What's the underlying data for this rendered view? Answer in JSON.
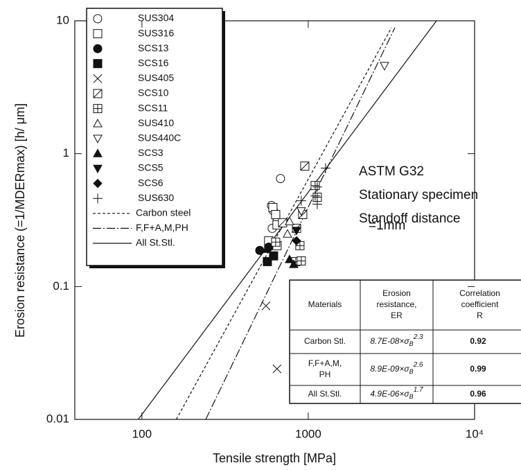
{
  "chart_data": {
    "type": "scatter",
    "xlabel": "Tensile strength  [MPa]",
    "ylabel": "Erosion resistance (=1/MDERmax) [h/ μm]",
    "xscale": "log",
    "yscale": "log",
    "xlim": [
      39.5,
      10000
    ],
    "ylim": [
      0.01,
      10
    ],
    "xticks": [
      100,
      1000,
      {
        "value": 10000,
        "label": "10⁴"
      }
    ],
    "yticks": [
      0.01,
      0.1,
      1,
      10
    ],
    "legend": "top-left",
    "series": [
      {
        "name": "SUS304",
        "marker": "circle-open",
        "x": [
          601,
          619,
          637,
          649,
          681,
          607
        ],
        "values": [
          0.407,
          0.37,
          0.34,
          0.309,
          0.649,
          0.274
        ]
      },
      {
        "name": "SUS316",
        "marker": "square-open",
        "x": [
          613,
          637,
          649,
          578,
          649
        ],
        "values": [
          0.393,
          0.348,
          0.291,
          0.221,
          0.203
        ]
      },
      {
        "name": "SCS13",
        "marker": "circle-filled",
        "x": [
          511,
          578
        ],
        "values": [
          0.187,
          0.198
        ]
      },
      {
        "name": "SCS16",
        "marker": "square-filled",
        "x": [
          568,
          619
        ],
        "values": [
          0.154,
          0.17
        ]
      },
      {
        "name": "SUS405",
        "marker": "x",
        "x": [
          557,
          649
        ],
        "values": [
          0.0715,
          0.024
        ]
      },
      {
        "name": "SCS10",
        "marker": "square-diag",
        "x": [
          953,
          926,
          701,
          850
        ],
        "values": [
          0.806,
          0.348,
          0.302,
          0.274
        ]
      },
      {
        "name": "SCS11",
        "marker": "square-plus",
        "x": [
          1101,
          1133,
          891,
          841,
          637,
          908
        ],
        "values": [
          0.576,
          0.47,
          0.203,
          0.154,
          0.216,
          0.156
        ]
      },
      {
        "name": "SUS410",
        "marker": "triangle-up-open",
        "x": [
          772,
          750
        ],
        "values": [
          0.309,
          0.249
        ]
      },
      {
        "name": "SUS440C",
        "marker": "triangle-down-open",
        "x": [
          2872,
          908
        ],
        "values": [
          4.59,
          0.37
        ]
      },
      {
        "name": "SCS3",
        "marker": "triangle-up-filled",
        "x": [
          562,
          772,
          818
        ],
        "values": [
          0.191,
          0.16,
          0.147
        ]
      },
      {
        "name": "SCS5",
        "marker": "triangle-down-filled",
        "x": [
          850
        ],
        "values": [
          0.264
        ]
      },
      {
        "name": "SCS6",
        "marker": "diamond-filled",
        "x": [
          850
        ],
        "values": [
          0.221
        ]
      },
      {
        "name": "SUS630",
        "marker": "plus",
        "x": [
          1271,
          1133,
          1101,
          1133,
          908
        ],
        "values": [
          0.778,
          0.562,
          0.481,
          0.417,
          0.442
        ]
      },
      {
        "name": "Carbon steel",
        "line": "dashed",
        "x": [
          161,
          3162
        ],
        "values": [
          0.01,
          8.87
        ]
      },
      {
        "name": "F,F+A,M,PH",
        "line": "dashdot",
        "x": [
          242,
          3319
        ],
        "values": [
          0.01,
          8.9
        ]
      },
      {
        "name": "All St.Stl.",
        "line": "solid",
        "x": [
          95,
          5902
        ],
        "values": [
          0.01,
          10
        ]
      }
    ],
    "annotations": [
      [
        "ASTM G32"
      ],
      [
        "Stationary specimen"
      ],
      [
        "Standoff distance",
        "=1mm"
      ]
    ],
    "table": {
      "header": [
        [
          "Materials"
        ],
        [
          "Erosion",
          "resistance,",
          "ER"
        ],
        [
          "Correlation",
          "coefficient",
          "R"
        ]
      ],
      "rows": [
        [
          [
            "Carbon Stl."
          ],
          {
            "base": "8.7E-08×σ",
            "sub": "B",
            "sup": "2.3"
          },
          "0.92"
        ],
        [
          [
            "F,F+A,M,",
            "PH"
          ],
          {
            "base": "8.9E-09×σ",
            "sub": "B",
            "sup": "2.6"
          },
          "0.99"
        ],
        [
          [
            "All St.Stl."
          ],
          {
            "base": "4.9E-06×σ",
            "sub": "B",
            "sup": "1.7"
          },
          "0.96"
        ]
      ]
    }
  }
}
